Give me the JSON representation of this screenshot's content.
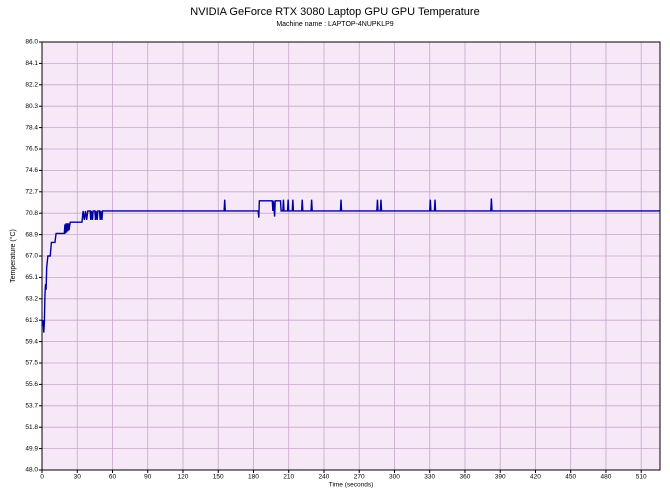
{
  "chart_data": {
    "type": "line",
    "title": "NVIDIA GeForce RTX 3080 Laptop GPU GPU Temperature",
    "subtitle": "Machine name : LAPTOP-4NUPKLP9",
    "x_label": "Time (seconds)",
    "y_label": "Temperature (°C)",
    "xlim": [
      0,
      526
    ],
    "xticks": [
      0,
      30,
      60,
      90,
      120,
      150,
      180,
      210,
      240,
      270,
      300,
      330,
      360,
      390,
      420,
      450,
      480,
      510
    ],
    "ylim": [
      48,
      86
    ],
    "yticks": [
      {
        "value": 86,
        "label": "86.0"
      },
      84.1,
      82.2,
      80.3,
      78.4,
      76.5,
      74.6,
      72.7,
      70.8,
      68.9,
      {
        "value": 67,
        "label": "67.0"
      },
      65.1,
      63.2,
      61.3,
      59.4,
      57.5,
      55.6,
      53.7,
      51.8,
      49.9,
      {
        "value": 48,
        "label": "48.0"
      }
    ],
    "grid": true,
    "x": [
      0,
      0.5,
      1,
      1.5,
      2,
      2.5,
      3,
      3.5,
      4,
      5,
      7,
      8,
      11,
      12,
      19,
      19.5,
      20,
      20.5,
      21,
      21.5,
      22,
      22.5,
      23,
      24,
      34,
      35,
      36,
      37,
      38,
      39,
      41,
      41.5,
      42,
      43,
      43.5,
      45,
      45.5,
      46,
      47,
      47.5,
      49,
      49.5,
      50,
      51,
      51.5,
      155,
      155.5,
      156,
      184,
      184.5,
      185,
      196,
      196.5,
      197,
      198,
      198.5,
      203,
      203.5,
      205,
      205.5,
      206,
      209,
      209.5,
      210,
      213,
      213.5,
      214,
      221,
      221.5,
      222,
      229,
      229.5,
      230,
      254,
      254.5,
      255,
      285,
      285.5,
      286,
      288,
      288.5,
      289,
      330,
      330.5,
      331,
      334,
      334.5,
      335,
      382,
      382.5,
      383,
      526
    ],
    "series": [
      {
        "color": "#0000a0",
        "values": [
          61.3,
          60.8,
          61.3,
          60.2,
          61.0,
          63.5,
          64.5,
          64.0,
          66.0,
          67.0,
          67.0,
          68.2,
          68.2,
          69.0,
          69.0,
          69.8,
          69.0,
          69.9,
          69.1,
          69.9,
          69.2,
          69.9,
          69.3,
          70.0,
          70.0,
          71.0,
          70.2,
          71.0,
          70.2,
          71.0,
          71.0,
          70.2,
          71.0,
          70.2,
          71.0,
          71.0,
          70.2,
          71.0,
          70.2,
          71.0,
          71.0,
          70.2,
          71.0,
          70.2,
          71.0,
          71.0,
          72.0,
          71.0,
          71.0,
          70.4,
          71.9,
          71.9,
          71.0,
          71.9,
          70.5,
          71.9,
          71.9,
          71.0,
          71.0,
          72.0,
          71.0,
          71.0,
          72.0,
          71.0,
          71.0,
          72.0,
          71.0,
          71.0,
          72.0,
          71.0,
          71.0,
          72.0,
          71.0,
          71.0,
          72.0,
          71.0,
          71.0,
          72.0,
          71.0,
          71.0,
          72.0,
          71.0,
          71.0,
          72.0,
          71.0,
          71.0,
          72.0,
          71.0,
          71.0,
          72.1,
          71.0,
          71.0
        ]
      }
    ],
    "plot_background": "#f7e8f8",
    "grid_color": "#c8a6cc",
    "title_color": "#108a10"
  }
}
